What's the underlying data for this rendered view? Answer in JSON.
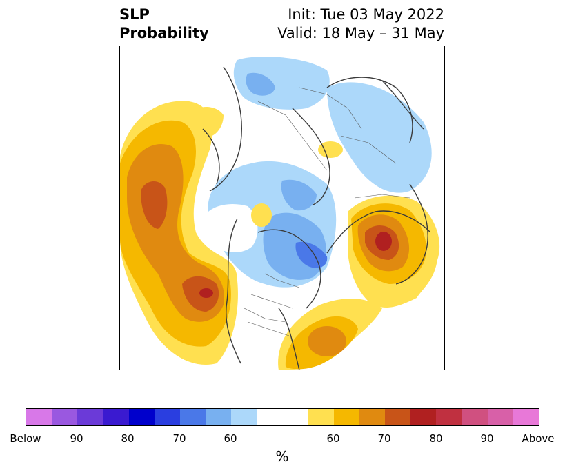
{
  "title": {
    "left_line1": "SLP",
    "left_line2": "Probability",
    "right_line1": "Init: Tue 03 May 2022",
    "right_line2": "Valid: 18 May – 31 May"
  },
  "colorbar": {
    "colors": [
      "#d878e8",
      "#9a58e0",
      "#6b3ad8",
      "#3a1ad0",
      "#0000cc",
      "#2a3ee0",
      "#4a78e8",
      "#78b0f0",
      "#acd8fa",
      "#ffffff",
      "#ffffff",
      "#ffe050",
      "#f5b800",
      "#e08a10",
      "#c85418",
      "#b02020",
      "#c03040",
      "#d05080",
      "#d860a8",
      "#e878d8"
    ],
    "tick_labels": [
      "Below",
      "90",
      "80",
      "70",
      "60",
      "60",
      "70",
      "80",
      "90",
      "Above"
    ],
    "unit": "%"
  },
  "map": {
    "palette": {
      "blue_light": "#acd8fa",
      "blue_mid": "#78b0f0",
      "blue_dark": "#4a78e8",
      "yellow": "#ffe050",
      "gold": "#f5b800",
      "orange": "#e08a10",
      "red_orange": "#c85418",
      "red": "#b02020"
    }
  }
}
